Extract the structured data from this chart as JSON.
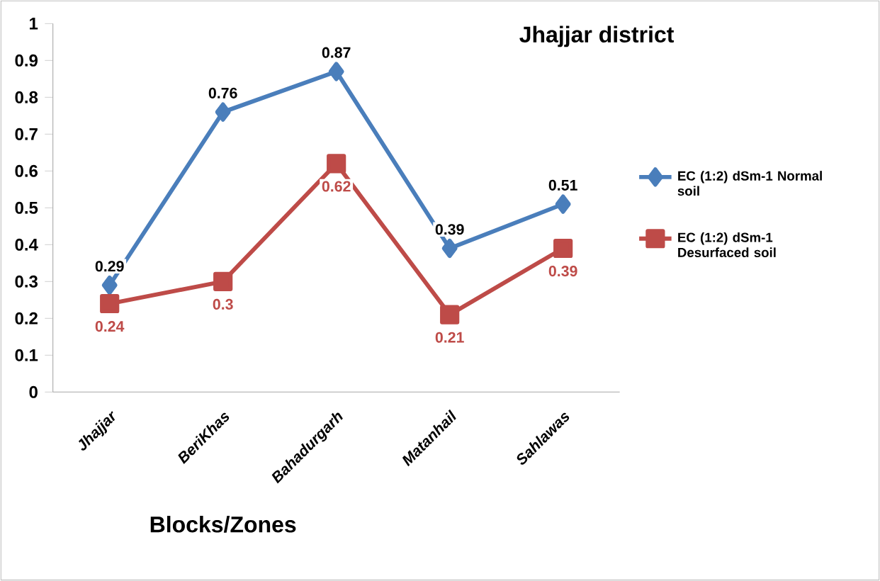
{
  "chart_data": {
    "type": "line",
    "title": "Jhajjar district",
    "xlabel": "Blocks/Zones",
    "categories": [
      "Jhajjar",
      "BeriKhas",
      "Bahadurgarh",
      "Matanhail",
      "Sahlawas"
    ],
    "series": [
      {
        "name": "EC (1:2) dSm-1 Normal soil",
        "color": "#4a7ebb",
        "marker": "diamond",
        "values": [
          0.29,
          0.76,
          0.87,
          0.39,
          0.51
        ]
      },
      {
        "name": "EC (1:2) dSm-1 Desurfaced soil",
        "color": "#be4b48",
        "marker": "square",
        "values": [
          0.24,
          0.3,
          0.62,
          0.21,
          0.39
        ]
      }
    ],
    "ylim": [
      0,
      1
    ],
    "yticks": [
      0,
      0.1,
      0.2,
      0.3,
      0.4,
      0.5,
      0.6,
      0.7,
      0.8,
      0.9,
      1
    ],
    "data_labels": true,
    "legend": "right",
    "grid": false,
    "line_style": "solid"
  }
}
